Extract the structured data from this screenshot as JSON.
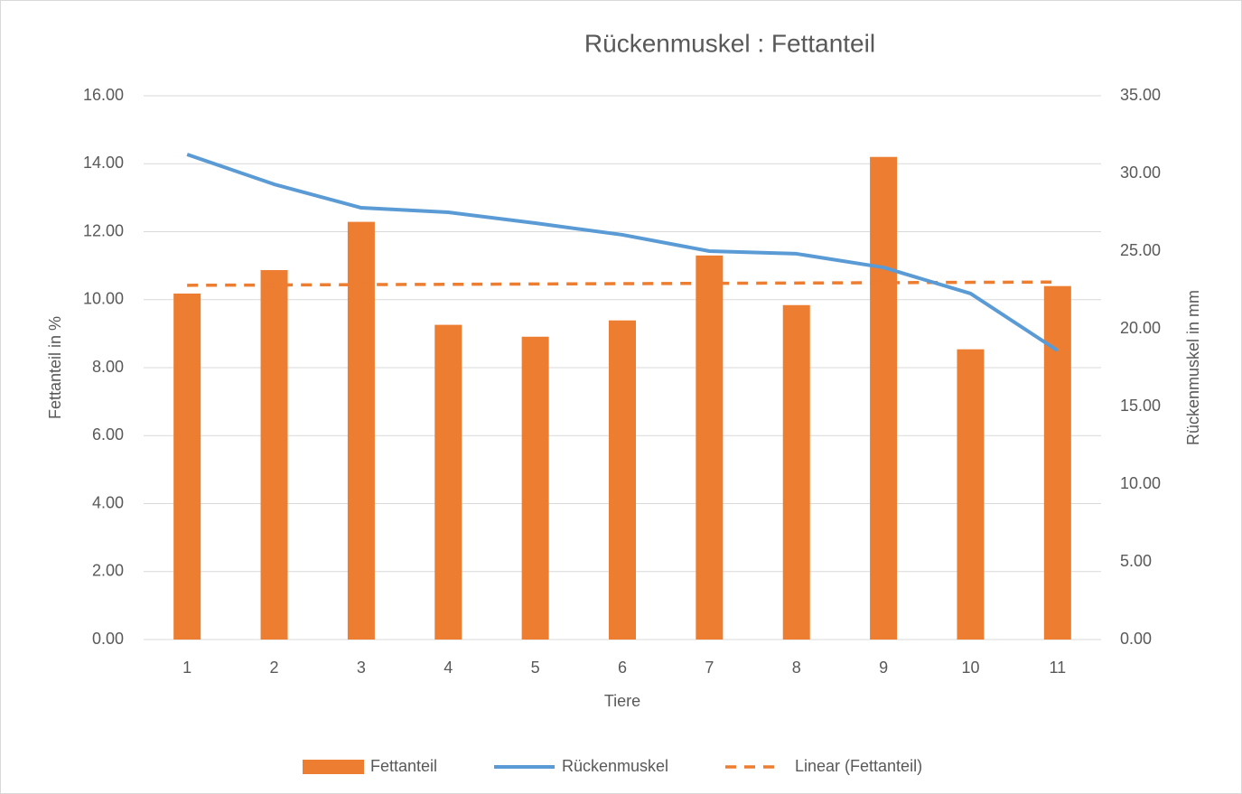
{
  "chart_data": {
    "type": "bar_line",
    "title": "Rückenmuskel : Fettanteil",
    "x_label": "Tiere",
    "y_label": "Fettanteil in %",
    "y2_label": "Rückenmuskel in mm",
    "categories": [
      "1",
      "2",
      "3",
      "4",
      "5",
      "6",
      "7",
      "8",
      "9",
      "10",
      "11"
    ],
    "series": [
      {
        "name": "Fettanteil",
        "type": "bar",
        "color": "#ed7d31",
        "values": [
          10.18,
          10.87,
          12.29,
          9.26,
          8.91,
          9.39,
          11.3,
          9.84,
          14.2,
          8.54,
          10.4
        ]
      },
      {
        "name": "Rückenmuskel",
        "type": "line",
        "axis": "y2",
        "color": "#5b9bd5",
        "values": [
          31.22,
          29.3,
          27.79,
          27.5,
          26.8,
          26.05,
          25.0,
          24.83,
          23.95,
          22.27,
          18.6
        ]
      }
    ],
    "trendline": {
      "name": "Linear (Fettanteil)",
      "series": 0,
      "color": "#ed7d31"
    },
    "ylim": [
      0,
      16
    ],
    "yticks": [
      {
        "value": 0,
        "label": "0.00"
      },
      {
        "value": 2,
        "label": "2.00"
      },
      {
        "value": 4,
        "label": "4.00"
      },
      {
        "value": 6,
        "label": "6.00"
      },
      {
        "value": 8,
        "label": "8.00"
      },
      {
        "value": 10,
        "label": "10.00"
      },
      {
        "value": 12,
        "label": "12.00"
      },
      {
        "value": 14,
        "label": "14.00"
      },
      {
        "value": 16,
        "label": "16.00"
      }
    ],
    "y2lim": [
      0,
      35
    ],
    "y2ticks": [
      {
        "value": 0,
        "label": "0.00"
      },
      {
        "value": 5,
        "label": "5.00"
      },
      {
        "value": 10,
        "label": "10.00"
      },
      {
        "value": 15,
        "label": "15.00"
      },
      {
        "value": 20,
        "label": "20.00"
      },
      {
        "value": 25,
        "label": "25.00"
      },
      {
        "value": 30,
        "label": "30.00"
      },
      {
        "value": 35,
        "label": "35.00"
      }
    ],
    "grid": true,
    "legend": "bottom"
  }
}
